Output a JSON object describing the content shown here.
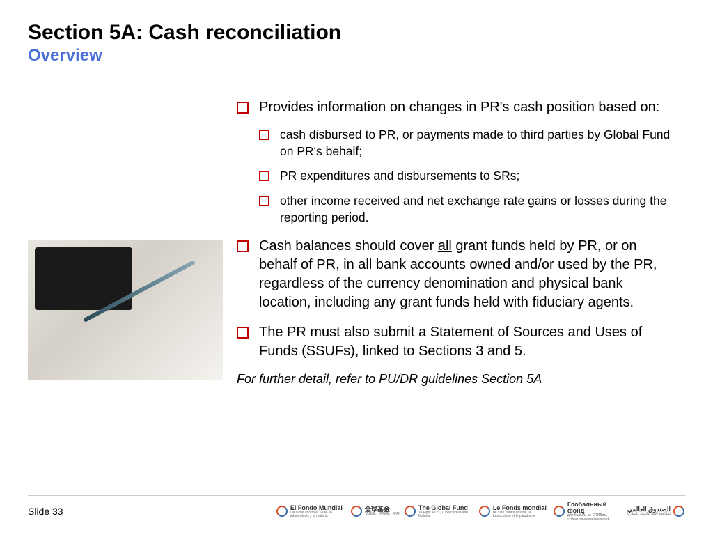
{
  "header": {
    "title": "Section 5A: Cash reconciliation",
    "subtitle": "Overview",
    "title_color": "#000000",
    "subtitle_color": "#4a6fd8"
  },
  "bullets": {
    "bullet_marker_color": "#c00000",
    "items": [
      {
        "text_before": "Provides information on changes in PR's cash position based on:",
        "sub": [
          "cash disbursed to PR, or payments made to third parties by Global Fund on PR's behalf;",
          "PR expenditures and disbursements to SRs;",
          "other income received and net exchange rate gains or losses during the reporting period."
        ]
      },
      {
        "text_before": "Cash balances should cover ",
        "underline": "all",
        "text_after": " grant funds held by PR, or on behalf of PR, in all bank accounts owned and/or used by the PR, regardless of the currency denomination and physical bank location, including any grant funds held with fiduciary agents."
      },
      {
        "text_before": "The PR must also submit a Statement of Sources and Uses of Funds (SSUFs), linked to Sections 3 and 5."
      }
    ],
    "footnote": "For further detail, refer to PU/DR guidelines Section 5A"
  },
  "footer": {
    "slide_number": "Slide 33",
    "logos": [
      {
        "main": "El Fondo Mundial",
        "sub": "De lucha contra el SIDA, la tuberculosis y la malaria"
      },
      {
        "main": "全球基金",
        "sub": "艾滋病、结核病、疟疾"
      },
      {
        "main": "The Global Fund",
        "sub": "To Fight AIDS, Tuberculosis and Malaria"
      },
      {
        "main": "Le Fonds mondial",
        "sub": "de lutte contre le sida, la tuberculose et le paludisme"
      },
      {
        "main": "Глобальный фонд",
        "sub": "для борьбы со СПИДом, туберкулезом и малярией"
      },
      {
        "main": "الصندوق العالمي",
        "sub": "لمكافحة الإيدز والسل والملاريا"
      }
    ]
  }
}
